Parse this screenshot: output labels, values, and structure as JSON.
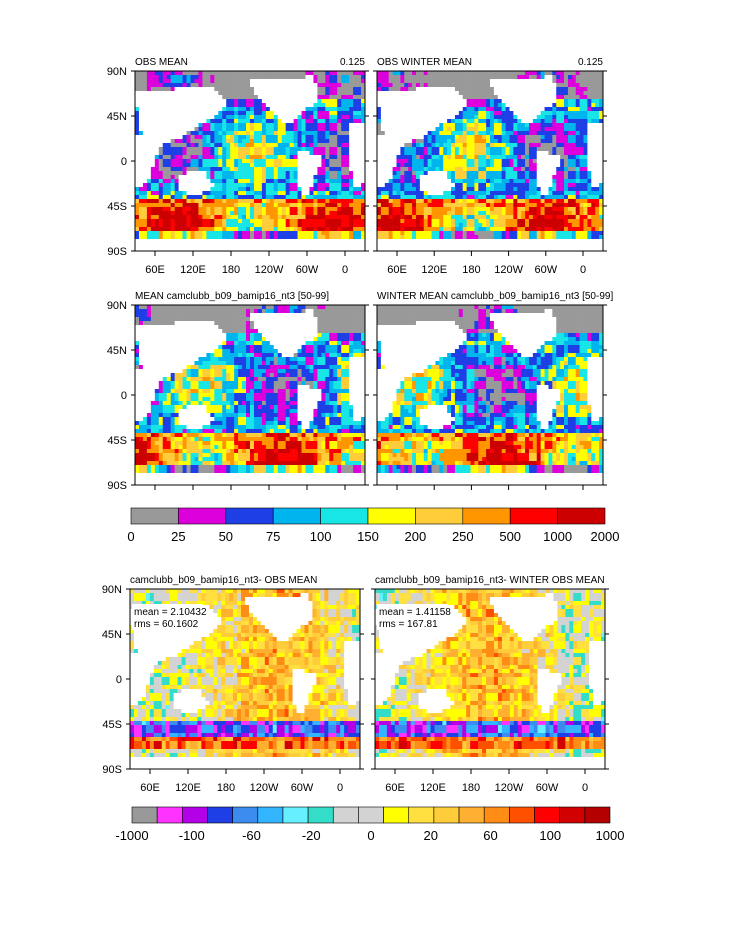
{
  "palette_main": [
    "#999999",
    "#dd00dd",
    "#1e3fe6",
    "#00b4ee",
    "#18e6e6",
    "#ffff00",
    "#ffcc3a",
    "#ff9600",
    "#ff0000",
    "#cc0000"
  ],
  "palette_diff": [
    "#999999",
    "#ff33ff",
    "#b300e6",
    "#1e3fe6",
    "#3c8cf0",
    "#32b4ff",
    "#66f0ff",
    "#33ddc8",
    "#d3d3d3",
    "#d3d3d3",
    "#ffff00",
    "#ffe040",
    "#ffcc3a",
    "#ffb030",
    "#ff8c14",
    "#ff5000",
    "#ff0000",
    "#d20000",
    "#b40000"
  ],
  "land_color": "#ffffff",
  "lat_ticks": [
    "90N",
    "45N",
    "0",
    "45S",
    "90S"
  ],
  "lon_ticks": [
    "60E",
    "120E",
    "180",
    "120W",
    "60W",
    "0"
  ],
  "colorbar_main": {
    "labels": [
      "0",
      "25",
      "50",
      "75",
      "100",
      "150",
      "200",
      "250",
      "500",
      "1000",
      "2000"
    ]
  },
  "colorbar_diff": {
    "labels": [
      "-1000",
      "-100",
      "-60",
      "-20",
      "0",
      "20",
      "60",
      "100",
      "1000"
    ]
  },
  "chart_data": [
    {
      "type": "heatmap",
      "title_left": "OBS MEAN",
      "title_right": "0.125",
      "field": "main_obs",
      "mean": "",
      "rms": ""
    },
    {
      "type": "heatmap",
      "title_left": "OBS WINTER MEAN",
      "title_right": "0.125",
      "field": "main_obs_winter",
      "mean": "",
      "rms": ""
    },
    {
      "type": "heatmap",
      "title_left": "MEAN camclubb_b09_bamip16_nt3 [50-99]",
      "title_right": "",
      "field": "main_model",
      "mean": "",
      "rms": ""
    },
    {
      "type": "heatmap",
      "title_left": "WINTER MEAN camclubb_b09_bamip16_nt3 [50-99]",
      "title_right": "",
      "field": "main_model_winter",
      "mean": "",
      "rms": ""
    },
    {
      "type": "heatmap",
      "title_left": "camclubb_b09_bamip16_nt3- OBS MEAN",
      "title_right": "",
      "field": "diff",
      "mean": "mean = 2.10432",
      "rms": "rms = 60.1602"
    },
    {
      "type": "heatmap",
      "title_left": "camclubb_b09_bamip16_nt3- WINTER OBS MEAN",
      "title_right": "",
      "field": "diff_winter",
      "mean": "mean = 1.41158",
      "rms": "rms = 167.81"
    }
  ]
}
